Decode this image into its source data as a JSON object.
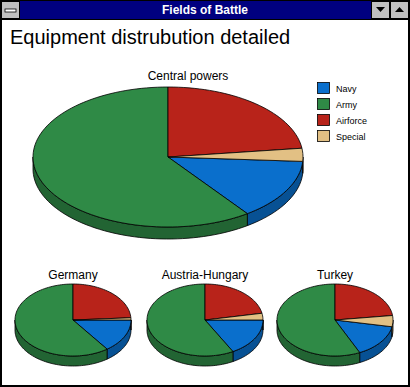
{
  "window_title": "Fields of Battle",
  "title": "Equipment distrubution detailed",
  "chart_data": [
    {
      "type": "pie",
      "title": "Central powers",
      "categories": [
        "Navy",
        "Army",
        "Airforce",
        "Special"
      ],
      "colors": [
        "#0a6fcc",
        "#2f8a46",
        "#b8231a",
        "#e2c084"
      ],
      "values": [
        14,
        60,
        23,
        3
      ],
      "legend": "top-right"
    },
    {
      "type": "pie",
      "title": "Germany",
      "values": [
        15,
        60,
        24,
        1
      ]
    },
    {
      "type": "pie",
      "title": "Austria-Hungary",
      "values": [
        17,
        58,
        22,
        3
      ]
    },
    {
      "type": "pie",
      "title": "Turkey",
      "values": [
        15,
        57,
        23,
        5
      ]
    }
  ]
}
